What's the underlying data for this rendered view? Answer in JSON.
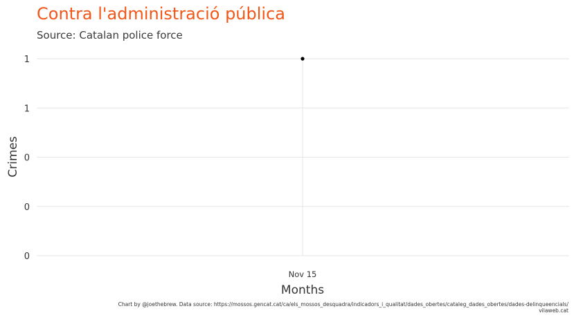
{
  "chart_data": {
    "type": "line",
    "title": "Contra l'administració pública",
    "subtitle": "Source: Catalan police force",
    "xlabel": "Months",
    "ylabel": "Crimes",
    "caption_line1": "Chart by @joethebrew. Data source: https://mossos.gencat.cat/ca/els_mossos_desquadra/indicadors_i_qualitat/dades_obertes/cataleg_dades_obertes/dades-delinqueencials/",
    "caption_line2": "vilaweb.cat",
    "x": [
      "Nov 15"
    ],
    "series": [
      {
        "values": [
          1
        ]
      }
    ],
    "ylim": [
      0,
      1
    ],
    "yticks": [
      0,
      0.25,
      0.5,
      0.75,
      1
    ],
    "ytick_labels": [
      "0",
      "0",
      "0",
      "1",
      "1"
    ],
    "grid": true,
    "point_color": "#000000",
    "title_color": "#f2571a",
    "grid_color": "#e5e5e5"
  }
}
